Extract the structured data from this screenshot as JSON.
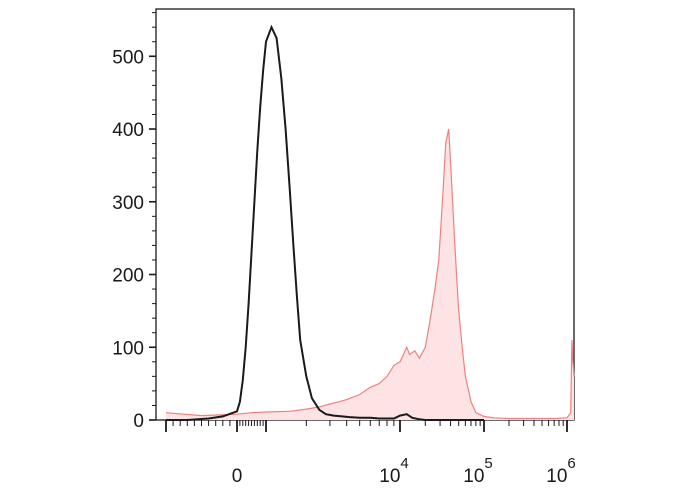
{
  "chart_data": {
    "type": "area",
    "title": "",
    "xlabel": "",
    "ylabel": "",
    "x_scale": "biexponential",
    "xlim": [
      -1000,
      1300000
    ],
    "ylim": [
      0,
      565
    ],
    "grid": false,
    "legend": "none",
    "y_ticks": [
      0,
      100,
      200,
      300,
      400,
      500
    ],
    "y_tick_labels": [
      "0",
      "100",
      "200",
      "300",
      "400",
      "500"
    ],
    "x_ticks": [
      {
        "value": 0,
        "base": "0",
        "exp": ""
      },
      {
        "value": 10000,
        "base": "10",
        "exp": "4"
      },
      {
        "value": 100000,
        "base": "10",
        "exp": "5"
      },
      {
        "value": 1000000,
        "base": "10",
        "exp": "6"
      }
    ],
    "series": [
      {
        "style": "outline",
        "color": "#1a1a1a",
        "x": [
          -1000,
          -700,
          -400,
          -200,
          0,
          100,
          200,
          300,
          400,
          500,
          600,
          700,
          800,
          900,
          1000,
          1100,
          1200,
          1300,
          1400,
          1500,
          1600,
          1700,
          1800,
          2000,
          2200,
          2500,
          2800,
          3200,
          3700,
          4200,
          5000,
          6000,
          7000,
          8000,
          9000,
          10000,
          12000,
          14000,
          17000,
          20000,
          30000,
          50000,
          100000
        ],
        "y": [
          0,
          0,
          2,
          5,
          12,
          25,
          55,
          100,
          160,
          230,
          300,
          370,
          430,
          480,
          520,
          540,
          525,
          470,
          400,
          320,
          240,
          170,
          110,
          60,
          30,
          14,
          8,
          6,
          5,
          4,
          3,
          3,
          2,
          2,
          2,
          6,
          8,
          3,
          1,
          0,
          0,
          0,
          0
        ]
      },
      {
        "style": "filled",
        "color": "#f08080",
        "fill": "#fde3e3",
        "x": [
          -1000,
          -500,
          0,
          500,
          1000,
          1500,
          2000,
          2500,
          3000,
          3500,
          4000,
          5000,
          6000,
          7000,
          8000,
          9000,
          10000,
          11000,
          12000,
          13000,
          15000,
          17000,
          20000,
          23000,
          26000,
          29000,
          32000,
          35000,
          38000,
          41000,
          44000,
          47000,
          50000,
          55000,
          60000,
          70000,
          80000,
          100000,
          130000,
          200000,
          400000,
          700000,
          1000000,
          1150000,
          1200000,
          1250000,
          1300000
        ],
        "y": [
          10,
          6,
          8,
          10,
          11,
          12,
          15,
          18,
          22,
          25,
          28,
          35,
          45,
          50,
          60,
          75,
          80,
          90,
          100,
          90,
          95,
          85,
          100,
          140,
          180,
          220,
          300,
          380,
          400,
          330,
          260,
          200,
          150,
          100,
          60,
          25,
          10,
          5,
          3,
          2,
          2,
          2,
          3,
          10,
          110,
          80,
          60
        ]
      }
    ]
  }
}
